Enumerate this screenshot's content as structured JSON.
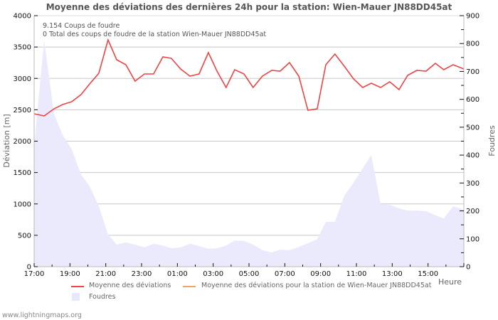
{
  "title": "Moyenne des déviations des dernières 24h pour la station: Wien-Mauer JN88DD45at",
  "info_lines": [
    "9.154  Coups de foudre",
    "0 Total des coups de foudre de la station Wien-Mauer JN88DD45at"
  ],
  "axes": {
    "left_title": "Déviation  [m]",
    "right_title": "Foudres",
    "x_title": "Heure",
    "left_ticks": [
      "0",
      "500",
      "1000",
      "1500",
      "2000",
      "2500",
      "3000",
      "3500",
      "4000"
    ],
    "right_ticks": [
      "0",
      "100",
      "200",
      "300",
      "400",
      "500",
      "600",
      "700",
      "800",
      "900"
    ],
    "x_ticks": [
      "17:00",
      "19:00",
      "21:00",
      "23:00",
      "01:00",
      "03:00",
      "05:00",
      "07:00",
      "09:00",
      "11:00",
      "13:00",
      "15:00"
    ]
  },
  "legend": {
    "items": [
      {
        "label": "Moyenne des déviations",
        "color": "#ee4444",
        "type": "line"
      },
      {
        "label": "Moyenne des déviations pour la station de Wien-Mauer JN88DD45at",
        "color": "#f4a460",
        "type": "line"
      },
      {
        "label": "Foudres",
        "color": "#e8e8fc",
        "type": "area"
      }
    ]
  },
  "footer": "www.lightningmaps.org",
  "colors": {
    "deviation_line": "#ee4444",
    "station_line": "#f4a460",
    "foudres_area": "#eaeafc",
    "grid": "#c8c8c8",
    "axis": "#bbbbbb"
  },
  "chart_data": {
    "type": "line",
    "title": "Moyenne des déviations des dernières 24h pour la station: Wien-Mauer JN88DD45at",
    "xlabel": "Heure",
    "ylabel": "Déviation  [m]",
    "y2label": "Foudres",
    "ylim": [
      0,
      4000
    ],
    "y2lim": [
      0,
      900
    ],
    "grid": true,
    "legend_position": "bottom",
    "x_hours_from_17": [
      0,
      0.56,
      1.11,
      1.59,
      2.1,
      2.62,
      3.1,
      3.61,
      4.13,
      4.61,
      5.12,
      5.64,
      6.16,
      6.67,
      7.19,
      7.66,
      8.18,
      8.7,
      9.21,
      9.73,
      10.21,
      10.72,
      11.2,
      11.72,
      12.23,
      12.75,
      13.27,
      13.74,
      14.26,
      14.78,
      15.29,
      15.81,
      16.29,
      16.8,
      17.32,
      17.84,
      18.35,
      18.83,
      19.35,
      19.86,
      20.38,
      20.86,
      21.37,
      21.89,
      22.41,
      22.88,
      23.4,
      24.0
    ],
    "series": [
      {
        "name": "Moyenne des déviations",
        "axis": "left",
        "values": [
          2436,
          2402,
          2516,
          2584,
          2629,
          2742,
          2912,
          3082,
          3615,
          3297,
          3218,
          2957,
          3071,
          3071,
          3343,
          3320,
          3150,
          3037,
          3071,
          3411,
          3116,
          2855,
          3139,
          3071,
          2855,
          3037,
          3127,
          3116,
          3252,
          3037,
          2493,
          2516,
          3218,
          3388,
          3195,
          2991,
          2855,
          2923,
          2855,
          2946,
          2821,
          3048,
          3127,
          3116,
          3241,
          3139,
          3218,
          3150
        ]
      },
      {
        "name": "Moyenne des déviations pour la station de Wien-Mauer JN88DD45at",
        "axis": "left",
        "values": []
      },
      {
        "name": "Foudres",
        "axis": "right",
        "type": "area",
        "values": [
          433,
          811,
          548,
          472,
          421,
          331,
          288,
          217,
          115,
          79,
          87,
          79,
          69,
          82,
          76,
          66,
          69,
          82,
          74,
          64,
          66,
          76,
          94,
          92,
          79,
          59,
          51,
          61,
          59,
          71,
          84,
          99,
          161,
          161,
          255,
          301,
          352,
          400,
          224,
          222,
          209,
          201,
          201,
          199,
          184,
          173,
          217,
          204
        ]
      }
    ]
  }
}
